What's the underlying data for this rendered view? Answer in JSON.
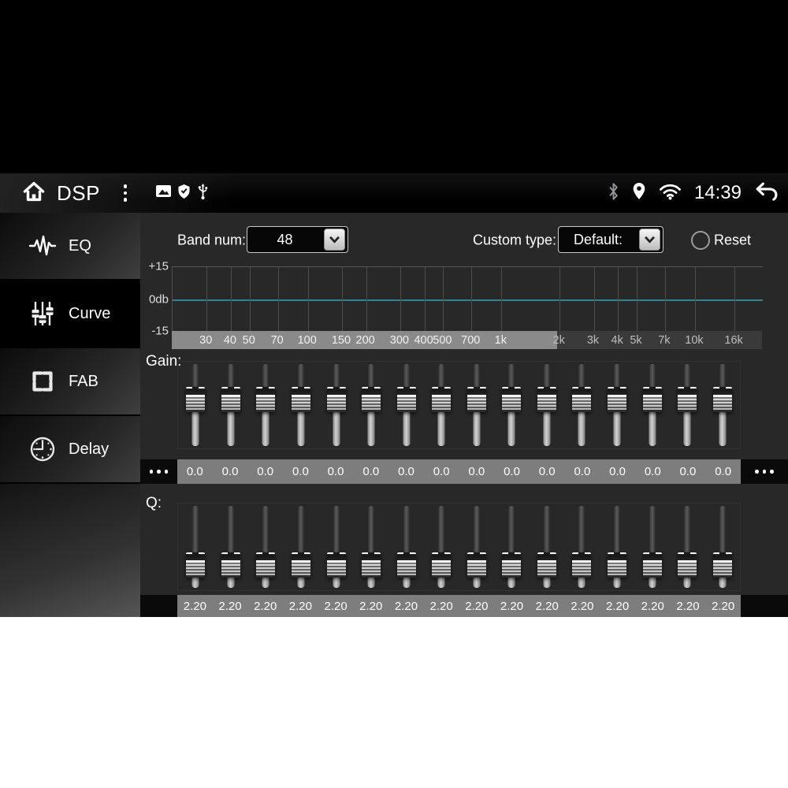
{
  "status_bar": {
    "title": "DSP",
    "time": "14:39",
    "left_icons": [
      "home-icon",
      "overflow-menu-icon",
      "gallery-icon",
      "shield-icon",
      "usb-icon"
    ],
    "right_icons": [
      "bluetooth-icon",
      "location-icon",
      "wifi-icon",
      "back-icon"
    ]
  },
  "sidebar": {
    "items": [
      {
        "label": "EQ",
        "icon": "waveform-icon",
        "selected": false
      },
      {
        "label": "Curve",
        "icon": "sliders-icon",
        "selected": true
      },
      {
        "label": "FAB",
        "icon": "fab-arrows-icon",
        "selected": false
      },
      {
        "label": "Delay",
        "icon": "clock-icon",
        "selected": false
      }
    ]
  },
  "controls": {
    "band_num": {
      "label": "Band num:",
      "value": "48"
    },
    "custom_type": {
      "label": "Custom type:",
      "value": "Default:"
    },
    "reset": {
      "label": "Reset",
      "checked": false
    }
  },
  "graph": {
    "y_axis_labels": [
      "+15",
      "0db",
      "-15"
    ],
    "freq_labels": [
      "30",
      "40",
      "50",
      "70",
      "100",
      "150",
      "200",
      "300",
      "400",
      "500",
      "700",
      "1k",
      "2k",
      "3k",
      "4k",
      "5k",
      "7k",
      "10k",
      "16k"
    ],
    "freq_values": [
      30,
      40,
      50,
      70,
      100,
      150,
      200,
      300,
      400,
      500,
      700,
      1000,
      2000,
      3000,
      4000,
      5000,
      7000,
      10000,
      16000
    ],
    "zero_line_color": "#2e8596",
    "curve_db": [
      0,
      0,
      0,
      0,
      0,
      0,
      0,
      0,
      0,
      0,
      0,
      0,
      0,
      0,
      0,
      0,
      0,
      0,
      0
    ],
    "ylim": [
      -15,
      15
    ]
  },
  "gain": {
    "label": "Gain:",
    "overflow_dots": "•••",
    "values": [
      "0.0",
      "0.0",
      "0.0",
      "0.0",
      "0.0",
      "0.0",
      "0.0",
      "0.0",
      "0.0",
      "0.0",
      "0.0",
      "0.0",
      "0.0",
      "0.0",
      "0.0",
      "0.0"
    ]
  },
  "q": {
    "label": "Q:",
    "values": [
      "2.20",
      "2.20",
      "2.20",
      "2.20",
      "2.20",
      "2.20",
      "2.20",
      "2.20",
      "2.20",
      "2.20",
      "2.20",
      "2.20",
      "2.20",
      "2.20",
      "2.20",
      "2.20"
    ]
  },
  "colors": {
    "accent_teal": "#2e8596",
    "value_strip_gray": "#7d7d7d",
    "axis_light_gray": "#8a8a8a",
    "axis_dark_gray": "#3a3a3a",
    "content_bg": "#282828"
  }
}
